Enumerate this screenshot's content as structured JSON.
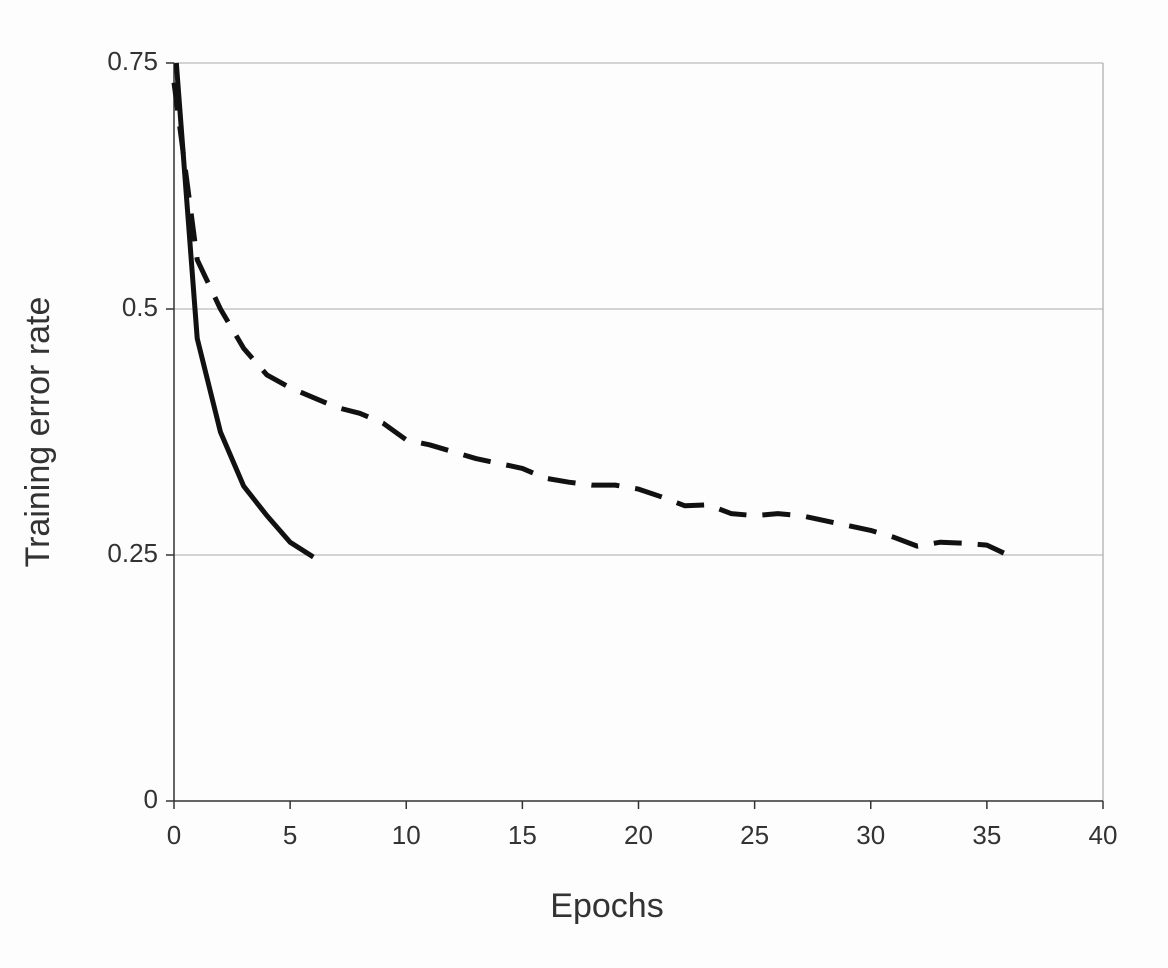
{
  "chart_data": {
    "type": "line",
    "x_label": "Epochs",
    "y_label": "Training error rate",
    "xlim": [
      0,
      40
    ],
    "xticks": [
      0,
      5,
      10,
      15,
      20,
      25,
      30,
      35,
      40
    ],
    "ylim": [
      0,
      0.75
    ],
    "yticks": [
      0,
      0.25,
      0.5,
      0.75
    ],
    "grid": true,
    "series": [
      {
        "color": "#111111",
        "dashed": false,
        "x": [
          0.1,
          1,
          2,
          3,
          4,
          5,
          6
        ],
        "values": [
          0.75,
          0.47,
          0.375,
          0.32,
          0.29,
          0.263,
          0.248
        ]
      },
      {
        "color": "#111111",
        "dashed": true,
        "x": [
          0,
          0.5,
          1,
          2,
          3,
          4,
          5,
          6,
          7,
          8,
          9,
          10,
          11,
          12,
          13,
          14,
          15,
          16,
          17,
          18,
          19,
          20,
          21,
          22,
          23,
          24,
          25,
          26,
          27,
          28,
          29,
          30,
          31,
          32,
          33,
          34,
          35,
          36
        ],
        "values": [
          0.73,
          0.64,
          0.55,
          0.5,
          0.46,
          0.433,
          0.42,
          0.41,
          0.4,
          0.394,
          0.384,
          0.367,
          0.362,
          0.355,
          0.348,
          0.343,
          0.338,
          0.328,
          0.324,
          0.321,
          0.321,
          0.317,
          0.309,
          0.3,
          0.301,
          0.292,
          0.29,
          0.292,
          0.29,
          0.285,
          0.28,
          0.275,
          0.268,
          0.259,
          0.263,
          0.262,
          0.26,
          0.249
        ]
      }
    ]
  }
}
